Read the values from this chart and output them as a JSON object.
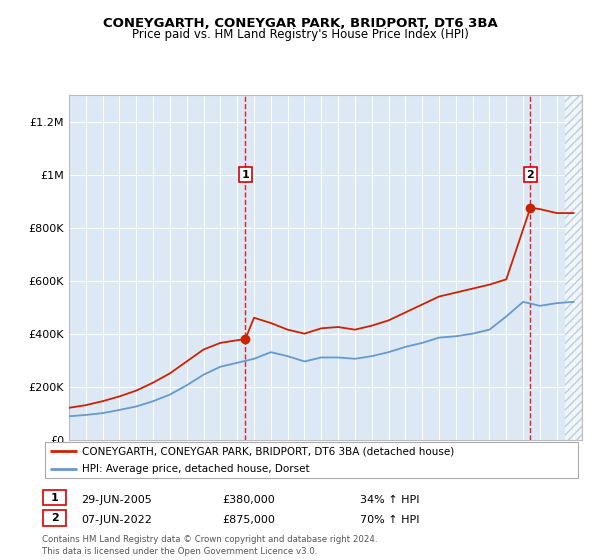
{
  "title": "CONEYGARTH, CONEYGAR PARK, BRIDPORT, DT6 3BA",
  "subtitle": "Price paid vs. HM Land Registry's House Price Index (HPI)",
  "background_color": "#dce9f5",
  "hatch_color": "#b8cfe0",
  "ylim": [
    0,
    1300000
  ],
  "yticks": [
    0,
    200000,
    400000,
    600000,
    800000,
    1000000,
    1200000
  ],
  "ytick_labels": [
    "£0",
    "£200K",
    "£400K",
    "£600K",
    "£800K",
    "£1M",
    "£1.2M"
  ],
  "xstart": 1995,
  "xend": 2025,
  "sale1_date": 2005.49,
  "sale1_price": 380000,
  "sale1_label": "1",
  "sale1_annotation": "29-JUN-2005",
  "sale1_price_text": "£380,000",
  "sale1_hpi_text": "34% ↑ HPI",
  "sale2_date": 2022.43,
  "sale2_price": 875000,
  "sale2_label": "2",
  "sale2_annotation": "07-JUN-2022",
  "sale2_price_text": "£875,000",
  "sale2_hpi_text": "70% ↑ HPI",
  "red_line_color": "#cc2200",
  "blue_line_color": "#6699cc",
  "legend_label_red": "CONEYGARTH, CONEYGAR PARK, BRIDPORT, DT6 3BA (detached house)",
  "legend_label_blue": "HPI: Average price, detached house, Dorset",
  "footer": "Contains HM Land Registry data © Crown copyright and database right 2024.\nThis data is licensed under the Open Government Licence v3.0.",
  "years_hpi": [
    1995,
    1996,
    1997,
    1998,
    1999,
    2000,
    2001,
    2002,
    2003,
    2004,
    2005,
    2006,
    2007,
    2008,
    2009,
    2010,
    2011,
    2012,
    2013,
    2014,
    2015,
    2016,
    2017,
    2018,
    2019,
    2020,
    2021,
    2022,
    2023,
    2024,
    2025
  ],
  "hpi_values": [
    88000,
    93000,
    100000,
    112000,
    125000,
    145000,
    170000,
    205000,
    245000,
    275000,
    290000,
    305000,
    330000,
    315000,
    295000,
    310000,
    310000,
    305000,
    315000,
    330000,
    350000,
    365000,
    385000,
    390000,
    400000,
    415000,
    465000,
    520000,
    505000,
    515000,
    520000
  ],
  "years_red": [
    1995,
    1996,
    1997,
    1998,
    1999,
    2000,
    2001,
    2002,
    2003,
    2004,
    2005.49,
    2006,
    2007,
    2008,
    2009,
    2010,
    2011,
    2012,
    2013,
    2014,
    2015,
    2016,
    2017,
    2018,
    2019,
    2020,
    2021,
    2022.43,
    2023,
    2024,
    2025
  ],
  "red_values": [
    120000,
    130000,
    145000,
    163000,
    185000,
    215000,
    250000,
    295000,
    340000,
    365000,
    380000,
    460000,
    440000,
    415000,
    400000,
    420000,
    425000,
    415000,
    430000,
    450000,
    480000,
    510000,
    540000,
    555000,
    570000,
    585000,
    605000,
    875000,
    870000,
    855000,
    855000
  ]
}
